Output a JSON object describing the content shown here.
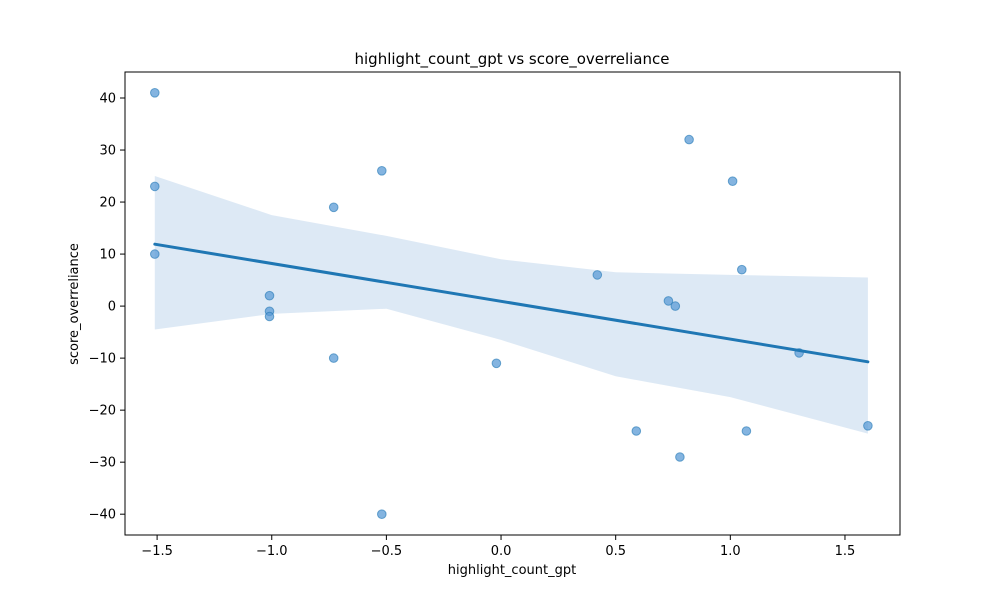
{
  "chart_data": {
    "type": "scatter",
    "title": "highlight_count_gpt vs score_overreliance",
    "xlabel": "highlight_count_gpt",
    "ylabel": "score_overreliance",
    "xlim": [
      -1.64,
      1.74
    ],
    "ylim": [
      -44,
      45
    ],
    "xticks": [
      -1.5,
      -1.0,
      -0.5,
      0.0,
      0.5,
      1.0,
      1.5
    ],
    "xtick_labels": [
      "−1.5",
      "−1.0",
      "−0.5",
      "0.0",
      "0.5",
      "1.0",
      "1.5"
    ],
    "yticks": [
      -40,
      -30,
      -20,
      -10,
      0,
      10,
      20,
      30,
      40
    ],
    "ytick_labels": [
      "−40",
      "−30",
      "−20",
      "−10",
      "0",
      "10",
      "20",
      "30",
      "40"
    ],
    "grid": false,
    "point_color": "#5b9bd5",
    "line_color": "#1f77b4",
    "band_color": "#c6dbef",
    "points": [
      {
        "x": -1.51,
        "y": 41
      },
      {
        "x": -1.51,
        "y": 23
      },
      {
        "x": -1.51,
        "y": 10
      },
      {
        "x": -1.01,
        "y": 2
      },
      {
        "x": -1.01,
        "y": -1
      },
      {
        "x": -1.01,
        "y": -2
      },
      {
        "x": -0.73,
        "y": 19
      },
      {
        "x": -0.73,
        "y": -10
      },
      {
        "x": -0.52,
        "y": 26
      },
      {
        "x": -0.52,
        "y": -40
      },
      {
        "x": -0.02,
        "y": -11
      },
      {
        "x": 0.42,
        "y": 6
      },
      {
        "x": 0.59,
        "y": -24
      },
      {
        "x": 0.73,
        "y": 1
      },
      {
        "x": 0.76,
        "y": 0
      },
      {
        "x": 0.78,
        "y": -29
      },
      {
        "x": 0.82,
        "y": 32
      },
      {
        "x": 1.01,
        "y": 24
      },
      {
        "x": 1.05,
        "y": 7
      },
      {
        "x": 1.07,
        "y": -24
      },
      {
        "x": 1.3,
        "y": -9
      },
      {
        "x": 1.6,
        "y": -23
      }
    ],
    "regression": {
      "x": [
        -1.51,
        1.6
      ],
      "y": [
        11.9,
        -10.7
      ]
    },
    "confidence_band": {
      "x": [
        -1.51,
        -1.0,
        -0.5,
        0.0,
        0.5,
        1.0,
        1.6
      ],
      "upper": [
        25,
        17.5,
        13.5,
        9.0,
        6.5,
        6.0,
        5.5
      ],
      "lower": [
        -4.5,
        -1.5,
        -0.5,
        -6.5,
        -13.5,
        -17.5,
        -24.5
      ]
    }
  }
}
